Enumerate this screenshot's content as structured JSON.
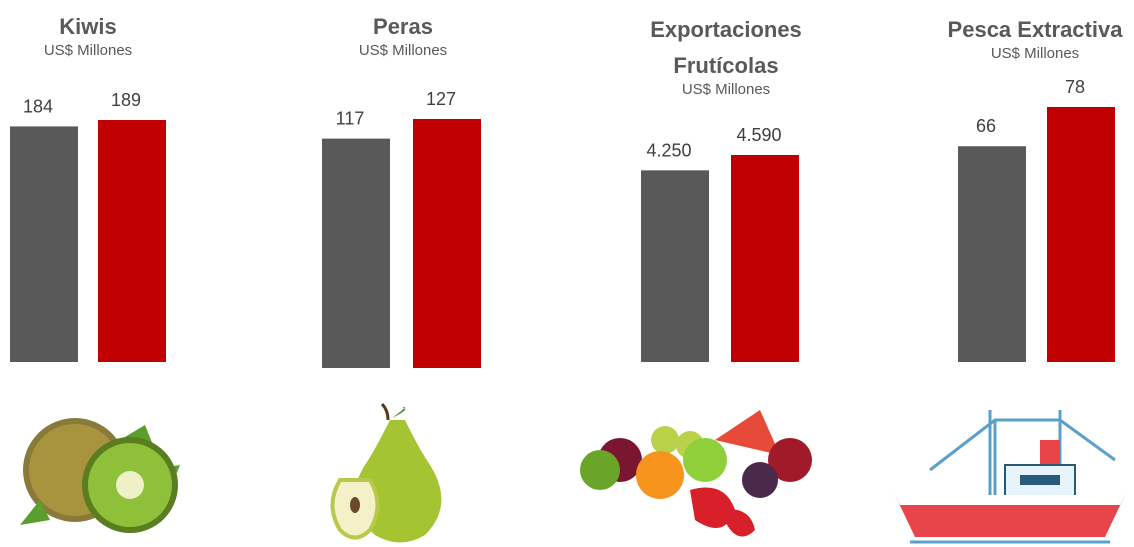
{
  "chart_data": [
    {
      "type": "bar",
      "title": "Kiwis",
      "subtitle": "US$ Millones",
      "categories": [
        null,
        null
      ],
      "values": [
        184,
        189
      ],
      "colors": [
        "#595959",
        "#c00000"
      ]
    },
    {
      "type": "bar",
      "title": "Peras",
      "subtitle": "US$ Millones",
      "categories": [
        null,
        null
      ],
      "values": [
        117,
        127
      ],
      "colors": [
        "#595959",
        "#c00000"
      ]
    },
    {
      "type": "bar",
      "title": "Exportaciones Frutícolas",
      "subtitle": "US$ Millones",
      "categories": [
        null,
        null
      ],
      "values": [
        4250,
        4590
      ],
      "value_labels": [
        "4.250",
        "4.590"
      ],
      "colors": [
        "#595959",
        "#c00000"
      ]
    },
    {
      "type": "bar",
      "title": "Pesca Extractiva",
      "subtitle": "US$ Millones",
      "categories": [
        null,
        null
      ],
      "values": [
        66,
        78
      ],
      "colors": [
        "#595959",
        "#c00000"
      ]
    }
  ]
}
